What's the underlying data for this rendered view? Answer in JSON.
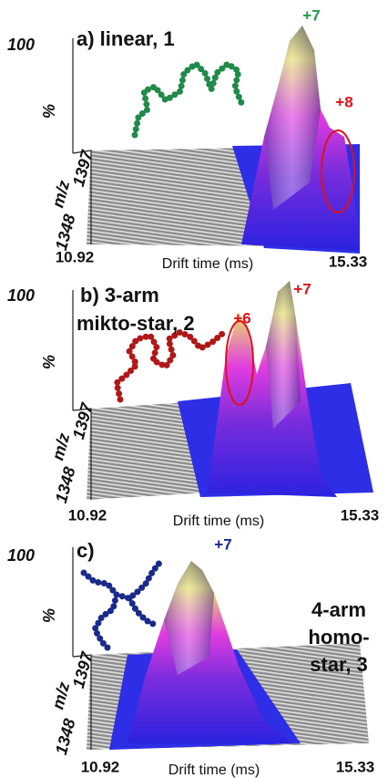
{
  "panels": [
    {
      "title": [
        "a) linear, 1"
      ],
      "y_top": "100",
      "y_unit": "%",
      "mz_top": "1397",
      "mz_label": "m/z",
      "mz_bottom": "1348",
      "x_left": "10.92",
      "x_right": "15.33",
      "x_label": "Drift time (ms)",
      "charges": [
        {
          "text": "+7",
          "color": "#1f9a50"
        },
        {
          "text": "+8",
          "color": "#e0101a"
        }
      ]
    },
    {
      "title": [
        "b) 3-arm",
        "mikto-star, 2"
      ],
      "y_top": "100",
      "y_unit": "%",
      "mz_top": "1397",
      "mz_label": "m/z",
      "mz_bottom": "1348",
      "x_left": "10.92",
      "x_right": "15.33",
      "x_label": "Drift time (ms)",
      "charges": [
        {
          "text": "+6",
          "color": "#e0101a"
        },
        {
          "text": "+7",
          "color": "#e0101a"
        }
      ]
    },
    {
      "title": [
        "c)",
        "4-arm",
        "homo-",
        "star, 3"
      ],
      "y_top": "100",
      "y_unit": "%",
      "mz_top": "1397",
      "mz_label": "m/z",
      "mz_bottom": "1348",
      "x_left": "10.92",
      "x_right": "15.33",
      "x_label": "Drift time (ms)",
      "charges": [
        {
          "text": "+7",
          "color": "#1a2a8a"
        }
      ]
    }
  ]
}
